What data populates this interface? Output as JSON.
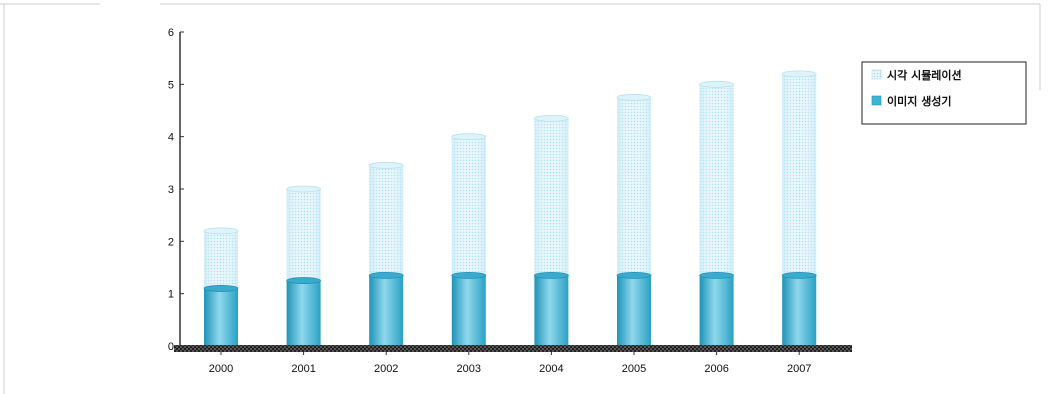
{
  "chart_data": {
    "type": "bar",
    "stacked": true,
    "categories": [
      "2000",
      "2001",
      "2002",
      "2003",
      "2004",
      "2005",
      "2006",
      "2007"
    ],
    "series": [
      {
        "name": "이미지 생성기",
        "values": [
          1.1,
          1.25,
          1.35,
          1.35,
          1.35,
          1.35,
          1.35,
          1.35
        ]
      },
      {
        "name": "시각 시뮬레이션",
        "values": [
          1.1,
          1.75,
          2.1,
          2.65,
          3.0,
          3.4,
          3.65,
          3.85
        ]
      }
    ],
    "title": "",
    "xlabel": "",
    "ylabel": "",
    "ylim": [
      0,
      6
    ],
    "yticks": [
      "0",
      "1",
      "2",
      "3",
      "4",
      "5",
      "6"
    ],
    "grid": false,
    "legend": "top-right",
    "colors": {
      "image_generator": "#3fb3d2",
      "visual_simulation": "#cfeef8",
      "axis": "#333333"
    }
  }
}
